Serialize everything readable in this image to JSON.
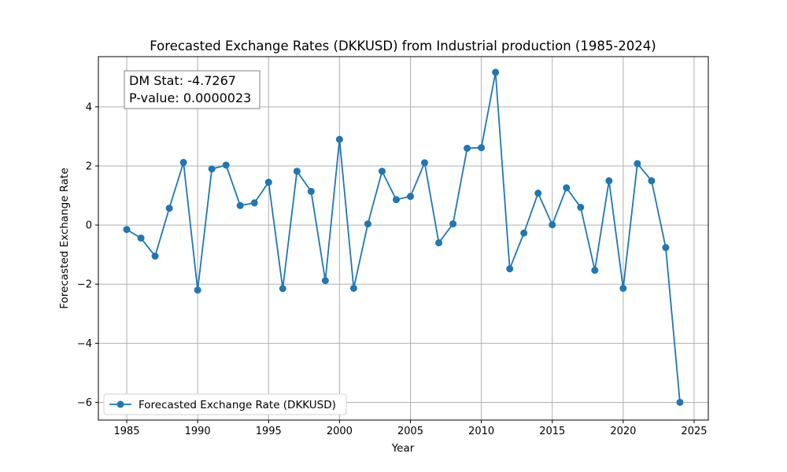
{
  "chart_data": {
    "type": "line",
    "title": "Forecasted Exchange Rates (DKKUSD) from Industrial production (1985-2024)",
    "xlabel": "Year",
    "ylabel": "Forecasted Exchange Rate",
    "xlim": [
      1983,
      2026
    ],
    "ylim": [
      -6.6,
      5.7
    ],
    "xticks": [
      1985,
      1990,
      1995,
      2000,
      2005,
      2010,
      2015,
      2020,
      2025
    ],
    "yticks": [
      -6,
      -4,
      -2,
      0,
      2,
      4
    ],
    "ytick_labels": [
      "−6",
      "−4",
      "−2",
      "0",
      "2",
      "4"
    ],
    "grid": true,
    "legend_position": "lower-left",
    "series": [
      {
        "name": "Forecasted Exchange Rate (DKKUSD)",
        "color": "#1f77b4",
        "marker": "circle",
        "x": [
          1985,
          1986,
          1987,
          1988,
          1989,
          1990,
          1991,
          1992,
          1993,
          1994,
          1995,
          1996,
          1997,
          1998,
          1999,
          2000,
          2001,
          2002,
          2003,
          2004,
          2005,
          2006,
          2007,
          2008,
          2009,
          2010,
          2011,
          2012,
          2013,
          2014,
          2015,
          2016,
          2017,
          2018,
          2019,
          2020,
          2021,
          2022,
          2023,
          2024
        ],
        "y": [
          -0.15,
          -0.44,
          -1.05,
          0.57,
          2.12,
          -2.2,
          1.9,
          2.03,
          0.66,
          0.75,
          1.45,
          -2.15,
          1.82,
          1.14,
          -1.88,
          2.9,
          -2.14,
          0.04,
          1.82,
          0.86,
          0.97,
          2.11,
          -0.6,
          0.04,
          2.6,
          2.62,
          5.17,
          -1.48,
          -0.27,
          1.08,
          0.01,
          1.26,
          0.6,
          -1.53,
          1.5,
          -2.14,
          2.08,
          1.5,
          -0.76,
          -6.0
        ]
      }
    ],
    "annotation": {
      "line1": "DM Stat: -4.7267",
      "line2": "P-value: 0.0000023"
    }
  }
}
